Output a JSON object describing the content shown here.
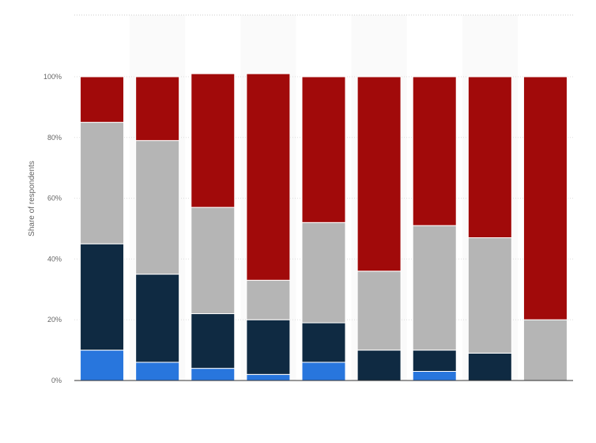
{
  "chart_data": {
    "type": "bar",
    "stacked": true,
    "ylabel": "Share of respondents",
    "ylim": [
      0,
      100
    ],
    "yticks": [
      0,
      20,
      40,
      60,
      80,
      100
    ],
    "ytick_labels": [
      "0%",
      "20%",
      "40%",
      "60%",
      "80%",
      "100%"
    ],
    "grid": true,
    "legend": "none",
    "categories": [
      "",
      "",
      "",
      "",
      "",
      "",
      "",
      "",
      ""
    ],
    "series": [
      {
        "color": "#2876dd",
        "values": [
          10,
          6,
          4,
          2,
          6,
          0,
          3,
          0,
          0
        ]
      },
      {
        "color": "#0f2a42",
        "values": [
          35,
          29,
          18,
          18,
          13,
          10,
          7,
          9,
          0
        ]
      },
      {
        "color": "#b5b5b5",
        "values": [
          40,
          44,
          35,
          13,
          33,
          26,
          41,
          38,
          20
        ]
      },
      {
        "color": "#a10a0a",
        "values": [
          15,
          21,
          44,
          68,
          48,
          64,
          49,
          53,
          80
        ]
      }
    ]
  }
}
